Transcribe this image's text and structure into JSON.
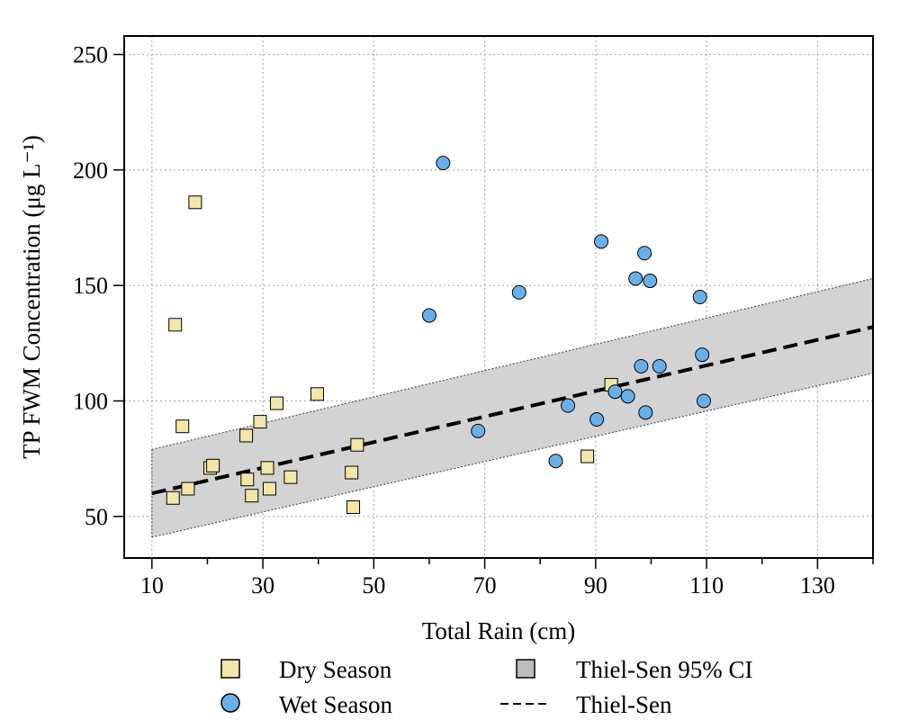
{
  "chart_data": {
    "type": "scatter",
    "title": "",
    "xlabel": "Total Rain (cm)",
    "ylabel": "TP FWM Concentration (μg L⁻¹)",
    "xlim": [
      5,
      140
    ],
    "ylim": [
      32,
      258
    ],
    "x_ticks": [
      10,
      30,
      50,
      70,
      90,
      110,
      130
    ],
    "x_minor_ticks": [
      20,
      40,
      60,
      80,
      100,
      120,
      140
    ],
    "y_ticks": [
      50,
      100,
      150,
      200,
      250
    ],
    "grid": true,
    "legend_placement": "bottom",
    "series": [
      {
        "name": "Dry Season",
        "marker": "square",
        "color": "#f2e6a8",
        "points": [
          [
            13.8,
            58
          ],
          [
            14.2,
            133
          ],
          [
            15.5,
            89
          ],
          [
            16.5,
            62
          ],
          [
            17.8,
            186
          ],
          [
            20.5,
            71
          ],
          [
            21,
            72
          ],
          [
            27,
            85
          ],
          [
            27.2,
            66
          ],
          [
            28,
            59
          ],
          [
            29.5,
            91
          ],
          [
            30.8,
            71
          ],
          [
            31.2,
            62
          ],
          [
            32.5,
            99
          ],
          [
            35,
            67
          ],
          [
            39.8,
            103
          ],
          [
            46,
            69
          ],
          [
            46.3,
            54
          ],
          [
            47,
            81
          ],
          [
            88.5,
            76
          ],
          [
            92.8,
            107
          ]
        ]
      },
      {
        "name": "Wet Season",
        "marker": "circle",
        "color": "#6ab0e8",
        "points": [
          [
            60,
            137
          ],
          [
            62.5,
            203
          ],
          [
            68.8,
            87
          ],
          [
            76.2,
            147
          ],
          [
            82.8,
            74
          ],
          [
            85,
            98
          ],
          [
            90.2,
            92
          ],
          [
            91,
            169
          ],
          [
            93.5,
            104
          ],
          [
            95.8,
            102
          ],
          [
            97.2,
            153
          ],
          [
            98.2,
            115
          ],
          [
            98.8,
            164
          ],
          [
            99,
            95
          ],
          [
            99.8,
            152
          ],
          [
            101.5,
            115
          ],
          [
            108.8,
            145
          ],
          [
            109.2,
            120
          ],
          [
            109.5,
            100
          ]
        ]
      }
    ],
    "fit": {
      "name": "Thiel-Sen",
      "style": "dashed",
      "x": [
        10,
        140
      ],
      "y": [
        60,
        132
      ]
    },
    "ci_band": {
      "name": "Thiel-Sen 95% CI",
      "color": "#d3d3d3",
      "x": [
        10,
        140
      ],
      "lower": [
        41,
        112
      ],
      "upper": [
        79,
        153
      ]
    },
    "legend": {
      "dry": "Dry Season",
      "wet": "Wet Season",
      "ci": "Thiel-Sen 95% CI",
      "fit": "Thiel-Sen"
    }
  }
}
